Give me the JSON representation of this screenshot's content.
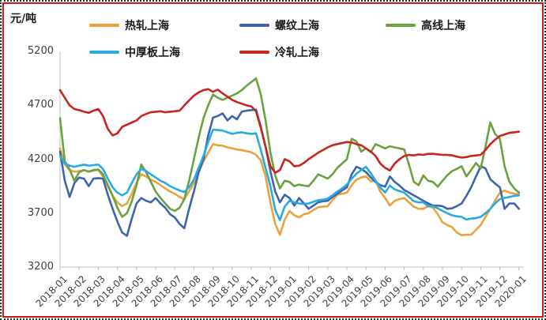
{
  "chart_data": {
    "type": "line",
    "title": "",
    "ylabel": "元/吨",
    "ylim": [
      3200,
      5200
    ],
    "y_ticks": [
      5200,
      4700,
      4200,
      3700,
      3200
    ],
    "grid": "off",
    "legend_position": "top",
    "frame_color": "#c21b17",
    "axis_color": "#bfbfbf",
    "points_per_month": 4,
    "x_tick_labels": [
      "2018-01",
      "2018-02",
      "2018-03",
      "2018-04",
      "2018-05",
      "2018-06",
      "2018-07",
      "2018-08",
      "2018-09",
      "2018-10",
      "2018-11",
      "2018-12",
      "2019-01",
      "2019-02",
      "2019-03",
      "2019-04",
      "2019-05",
      "2019-06",
      "2019-07",
      "2019-08",
      "2019-09",
      "2019-10",
      "2019-11",
      "2019-12",
      "2020-01"
    ],
    "series": [
      {
        "name": "热轧上海",
        "color": "#e8a33c",
        "values": [
          4300,
          4150,
          4100,
          4085,
          4090,
          4100,
          4085,
          4095,
          4100,
          4040,
          3950,
          3860,
          3800,
          3765,
          3790,
          3880,
          3980,
          4060,
          4040,
          4010,
          3990,
          3960,
          3930,
          3900,
          3880,
          3850,
          3830,
          3900,
          3980,
          4080,
          4180,
          4260,
          4340,
          4330,
          4325,
          4310,
          4300,
          4290,
          4285,
          4275,
          4265,
          4240,
          4190,
          4040,
          3800,
          3600,
          3500,
          3640,
          3720,
          3680,
          3660,
          3690,
          3700,
          3730,
          3755,
          3760,
          3765,
          3820,
          3870,
          3880,
          3890,
          3960,
          4010,
          4030,
          4040,
          3995,
          4000,
          3900,
          3840,
          3770,
          3815,
          3830,
          3840,
          3800,
          3760,
          3740,
          3740,
          3765,
          3750,
          3690,
          3615,
          3590,
          3570,
          3520,
          3495,
          3500,
          3500,
          3545,
          3590,
          3665,
          3740,
          3815,
          3890,
          3910,
          3890,
          3880,
          3875
        ]
      },
      {
        "name": "螺纹上海",
        "color": "#3e64ad",
        "values": [
          4270,
          4000,
          3850,
          3980,
          4030,
          4020,
          3950,
          4020,
          4025,
          4020,
          3870,
          3740,
          3620,
          3520,
          3490,
          3650,
          3790,
          3840,
          3815,
          3800,
          3840,
          3790,
          3750,
          3690,
          3660,
          3600,
          3560,
          3740,
          3900,
          4080,
          4200,
          4420,
          4585,
          4600,
          4625,
          4560,
          4600,
          4570,
          4640,
          4650,
          4655,
          4660,
          4500,
          4315,
          4090,
          3900,
          3800,
          3870,
          3840,
          3770,
          3840,
          3790,
          3740,
          3770,
          3800,
          3810,
          3815,
          3850,
          3880,
          3910,
          3940,
          4060,
          4130,
          4110,
          4080,
          4030,
          3990,
          3960,
          3945,
          4040,
          3990,
          3955,
          3915,
          3890,
          3865,
          3840,
          3815,
          3790,
          3770,
          3770,
          3765,
          3740,
          3745,
          3765,
          3790,
          3860,
          3940,
          4040,
          4135,
          4115,
          4015,
          3975,
          3940,
          3740,
          3790,
          3790,
          3740
        ]
      },
      {
        "name": "高线上海",
        "color": "#6aa23f",
        "values": [
          4580,
          4180,
          4105,
          4000,
          4080,
          4100,
          4085,
          4100,
          4105,
          4060,
          3960,
          3860,
          3750,
          3665,
          3700,
          3810,
          3960,
          4150,
          4080,
          3990,
          3900,
          3840,
          3790,
          3740,
          3720,
          3750,
          3830,
          4000,
          4200,
          4400,
          4580,
          4700,
          4800,
          4770,
          4750,
          4770,
          4790,
          4810,
          4840,
          4880,
          4915,
          4950,
          4800,
          4560,
          4265,
          4050,
          3930,
          4000,
          3990,
          3950,
          3965,
          3955,
          3950,
          4000,
          4060,
          4040,
          4020,
          4060,
          4120,
          4160,
          4200,
          4390,
          4365,
          4270,
          4300,
          4265,
          4340,
          4320,
          4300,
          4320,
          4310,
          4300,
          4290,
          4150,
          3990,
          3960,
          4050,
          4000,
          3990,
          3945,
          4000,
          4050,
          4090,
          4110,
          4135,
          4040,
          4100,
          4165,
          4115,
          4315,
          4540,
          4435,
          4390,
          4135,
          3990,
          3930,
          3890
        ]
      },
      {
        "name": "中厚板上海",
        "color": "#29abe2",
        "values": [
          4230,
          4160,
          4140,
          4130,
          4140,
          4150,
          4140,
          4145,
          4150,
          4110,
          4020,
          3940,
          3890,
          3865,
          3890,
          3980,
          4060,
          4110,
          4090,
          4060,
          4030,
          4000,
          3980,
          3950,
          3930,
          3910,
          3895,
          3940,
          4010,
          4120,
          4230,
          4360,
          4475,
          4470,
          4465,
          4450,
          4435,
          4445,
          4450,
          4440,
          4435,
          4440,
          4285,
          4120,
          3950,
          3730,
          3635,
          3760,
          3815,
          3800,
          3790,
          3785,
          3790,
          3805,
          3820,
          3825,
          3835,
          3865,
          3900,
          3930,
          3965,
          4020,
          4065,
          4100,
          4130,
          4070,
          4000,
          3940,
          3890,
          3955,
          3920,
          3905,
          3890,
          3850,
          3810,
          3800,
          3800,
          3765,
          3765,
          3745,
          3720,
          3700,
          3680,
          3670,
          3665,
          3640,
          3650,
          3655,
          3665,
          3700,
          3740,
          3790,
          3830,
          3840,
          3850,
          3860,
          3865
        ]
      },
      {
        "name": "冷轧上海",
        "color": "#c9241e",
        "values": [
          4840,
          4770,
          4700,
          4665,
          4655,
          4640,
          4630,
          4650,
          4665,
          4600,
          4480,
          4420,
          4440,
          4500,
          4520,
          4540,
          4560,
          4600,
          4620,
          4635,
          4640,
          4645,
          4635,
          4640,
          4645,
          4650,
          4700,
          4745,
          4790,
          4820,
          4840,
          4850,
          4825,
          4845,
          4810,
          4780,
          4750,
          4730,
          4715,
          4700,
          4690,
          4645,
          4490,
          4315,
          4135,
          4075,
          4100,
          4200,
          4180,
          4135,
          4140,
          4165,
          4200,
          4230,
          4260,
          4285,
          4310,
          4330,
          4340,
          4350,
          4360,
          4355,
          4340,
          4330,
          4300,
          4270,
          4230,
          4160,
          4120,
          4095,
          4160,
          4200,
          4230,
          4240,
          4235,
          4245,
          4240,
          4250,
          4250,
          4245,
          4240,
          4240,
          4235,
          4225,
          4215,
          4220,
          4230,
          4235,
          4240,
          4285,
          4340,
          4380,
          4415,
          4430,
          4445,
          4450,
          4455
        ]
      }
    ]
  }
}
